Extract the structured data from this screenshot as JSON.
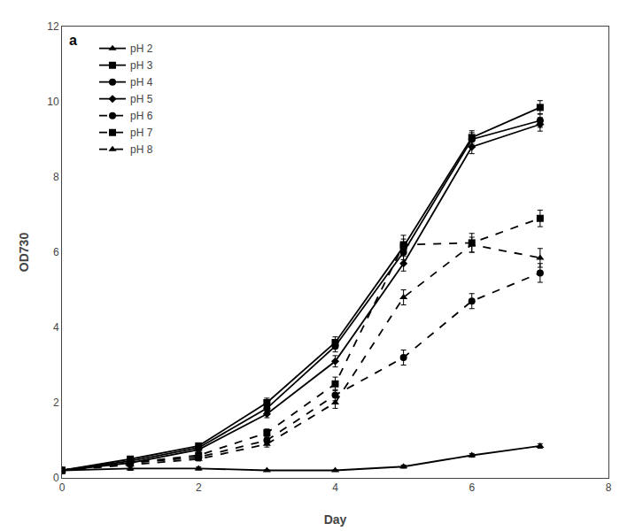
{
  "chart_data": {
    "type": "line",
    "xlabel": "Day",
    "ylabel": "OD730",
    "x": [
      0,
      1,
      2,
      3,
      4,
      5,
      6,
      7
    ],
    "xlim": [
      0,
      8
    ],
    "ylim": [
      0,
      12
    ],
    "xticks": [
      0,
      2,
      4,
      6,
      8
    ],
    "yticks": [
      0,
      2,
      4,
      6,
      8,
      10,
      12
    ],
    "grid": false,
    "legend": "upper left",
    "annotations": [
      {
        "text": "a"
      }
    ],
    "series": [
      {
        "name": "pH 2",
        "color": "#000000",
        "marker": "triangle-up",
        "line_style": "solid",
        "values": [
          0.2,
          0.25,
          0.25,
          0.2,
          0.2,
          0.3,
          0.6,
          0.85
        ],
        "yerr": [
          0.02,
          0.05,
          0.04,
          0.02,
          0.02,
          0.04,
          0.05,
          0.06
        ]
      },
      {
        "name": "pH 3",
        "color": "#000000",
        "marker": "square",
        "line_style": "solid",
        "values": [
          0.2,
          0.5,
          0.85,
          2.0,
          3.6,
          6.15,
          9.05,
          9.85
        ],
        "yerr": [
          0.02,
          0.06,
          0.08,
          0.12,
          0.15,
          0.2,
          0.18,
          0.18
        ]
      },
      {
        "name": "pH 4",
        "color": "#000000",
        "marker": "circle",
        "line_style": "solid",
        "values": [
          0.2,
          0.45,
          0.8,
          1.85,
          3.5,
          6.0,
          9.0,
          9.5
        ],
        "yerr": [
          0.02,
          0.05,
          0.07,
          0.1,
          0.15,
          0.2,
          0.18,
          0.18
        ]
      },
      {
        "name": "pH 5",
        "color": "#000000",
        "marker": "diamond",
        "line_style": "solid",
        "values": [
          0.2,
          0.4,
          0.75,
          1.7,
          3.1,
          5.7,
          8.8,
          9.4
        ],
        "yerr": [
          0.02,
          0.05,
          0.07,
          0.1,
          0.15,
          0.2,
          0.18,
          0.18
        ]
      },
      {
        "name": "pH 6",
        "color": "#000000",
        "marker": "circle",
        "line_style": "dashed",
        "values": [
          0.2,
          0.4,
          0.55,
          1.0,
          2.2,
          3.2,
          4.7,
          5.45
        ],
        "yerr": [
          0.02,
          0.05,
          0.05,
          0.08,
          0.15,
          0.2,
          0.2,
          0.25
        ]
      },
      {
        "name": "pH 7",
        "color": "#000000",
        "marker": "square",
        "line_style": "dashed",
        "values": [
          0.2,
          0.4,
          0.6,
          1.2,
          2.5,
          6.2,
          6.25,
          6.9
        ],
        "yerr": [
          0.02,
          0.05,
          0.06,
          0.1,
          0.18,
          0.25,
          0.25,
          0.22
        ]
      },
      {
        "name": "pH 8",
        "color": "#000000",
        "marker": "triangle-up",
        "line_style": "dashed",
        "values": [
          0.2,
          0.35,
          0.5,
          0.9,
          2.0,
          4.8,
          6.2,
          5.85
        ],
        "yerr": [
          0.02,
          0.04,
          0.05,
          0.08,
          0.15,
          0.2,
          0.2,
          0.25
        ]
      }
    ]
  }
}
